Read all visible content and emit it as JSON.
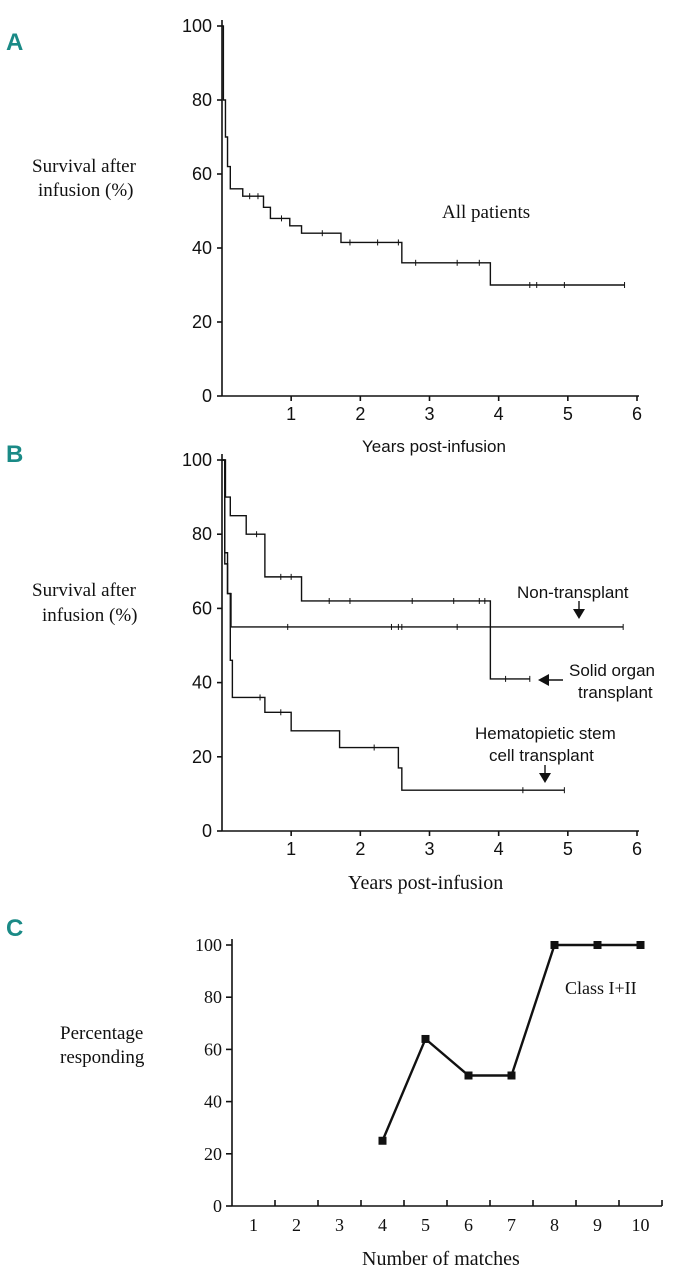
{
  "chart_data": [
    {
      "panel": "A",
      "type": "line",
      "subtype": "kaplan-meier",
      "ylabel": [
        "Survival after",
        "infusion (%)"
      ],
      "xlabel": "Years post-infusion",
      "xlim": [
        0,
        6
      ],
      "ylim": [
        0,
        100
      ],
      "xticks": [
        1,
        2,
        3,
        4,
        5,
        6
      ],
      "yticks": [
        0,
        20,
        40,
        60,
        80,
        100
      ],
      "annotations": [
        {
          "text": "All patients"
        }
      ],
      "series": [
        {
          "name": "All patients",
          "steps": [
            [
              0,
              100
            ],
            [
              0.02,
              80
            ],
            [
              0.05,
              70
            ],
            [
              0.08,
              62
            ],
            [
              0.12,
              56
            ],
            [
              0.3,
              54
            ],
            [
              0.6,
              51
            ],
            [
              0.7,
              48
            ],
            [
              0.98,
              46
            ],
            [
              1.15,
              44
            ],
            [
              1.72,
              41.5
            ],
            [
              2.6,
              36
            ],
            [
              3.88,
              30
            ],
            [
              5.82,
              30
            ]
          ],
          "censored": [
            [
              0.4,
              54
            ],
            [
              0.52,
              54
            ],
            [
              0.86,
              48
            ],
            [
              1.45,
              44
            ],
            [
              1.85,
              41.5
            ],
            [
              2.25,
              41.5
            ],
            [
              2.55,
              41.5
            ],
            [
              2.8,
              36
            ],
            [
              3.4,
              36
            ],
            [
              3.72,
              36
            ],
            [
              4.45,
              30
            ],
            [
              4.55,
              30
            ],
            [
              4.95,
              30
            ],
            [
              5.82,
              30
            ]
          ]
        }
      ]
    },
    {
      "panel": "B",
      "type": "line",
      "subtype": "kaplan-meier",
      "ylabel": [
        "Survival after",
        "infusion (%)"
      ],
      "xlabel": "Years post-infusion",
      "xlim": [
        0,
        6
      ],
      "ylim": [
        0,
        100
      ],
      "xticks": [
        1,
        2,
        3,
        4,
        5,
        6
      ],
      "yticks": [
        0,
        20,
        40,
        60,
        80,
        100
      ],
      "annotations": [
        {
          "lines": [
            "Non-transplant"
          ]
        },
        {
          "lines": [
            "Solid organ",
            "transplant"
          ]
        },
        {
          "lines": [
            "Hematopietic stem",
            "cell transplant"
          ]
        }
      ],
      "series": [
        {
          "name": "Solid organ transplant",
          "steps": [
            [
              0,
              100
            ],
            [
              0.05,
              90
            ],
            [
              0.12,
              85
            ],
            [
              0.35,
              80
            ],
            [
              0.62,
              68.5
            ],
            [
              1.15,
              62
            ],
            [
              3.88,
              41
            ],
            [
              4.45,
              41
            ]
          ],
          "censored": [
            [
              0.5,
              80
            ],
            [
              0.85,
              68.5
            ],
            [
              1.0,
              68.5
            ],
            [
              1.55,
              62
            ],
            [
              1.85,
              62
            ],
            [
              2.75,
              62
            ],
            [
              3.35,
              62
            ],
            [
              3.72,
              62
            ],
            [
              3.8,
              62
            ],
            [
              4.1,
              41
            ],
            [
              4.45,
              41
            ]
          ]
        },
        {
          "name": "Non-transplant",
          "steps": [
            [
              0,
              100
            ],
            [
              0.04,
              75
            ],
            [
              0.08,
              64
            ],
            [
              0.13,
              55
            ],
            [
              5.8,
              55
            ]
          ],
          "censored": [
            [
              0.95,
              55
            ],
            [
              2.45,
              55
            ],
            [
              2.55,
              55
            ],
            [
              2.6,
              55
            ],
            [
              3.4,
              55
            ],
            [
              5.8,
              55
            ]
          ]
        },
        {
          "name": "Hematopietic stem cell transplant",
          "steps": [
            [
              0,
              100
            ],
            [
              0.04,
              72
            ],
            [
              0.08,
              64
            ],
            [
              0.12,
              46
            ],
            [
              0.15,
              36
            ],
            [
              0.62,
              32
            ],
            [
              1.0,
              27
            ],
            [
              1.7,
              22.5
            ],
            [
              2.55,
              17
            ],
            [
              2.6,
              11
            ],
            [
              4.95,
              11
            ]
          ],
          "censored": [
            [
              0.55,
              36
            ],
            [
              0.85,
              32
            ],
            [
              2.2,
              22.5
            ],
            [
              4.35,
              11
            ],
            [
              4.95,
              11
            ]
          ]
        }
      ]
    },
    {
      "panel": "C",
      "type": "line",
      "ylabel": [
        "Percentage",
        "responding"
      ],
      "xlabel": "Number of matches",
      "categories": [
        "1",
        "2",
        "3",
        "4",
        "5",
        "6",
        "7",
        "8",
        "9",
        "10"
      ],
      "yticks": [
        0,
        20,
        40,
        60,
        80,
        100
      ],
      "ylim": [
        0,
        100
      ],
      "annotations": [
        {
          "text": "Class I+II"
        }
      ],
      "series": [
        {
          "name": "Class I+II",
          "x": [
            4,
            5,
            6,
            7,
            8,
            9,
            10
          ],
          "values": [
            25,
            64,
            50,
            50,
            100,
            100,
            100
          ]
        }
      ]
    }
  ]
}
